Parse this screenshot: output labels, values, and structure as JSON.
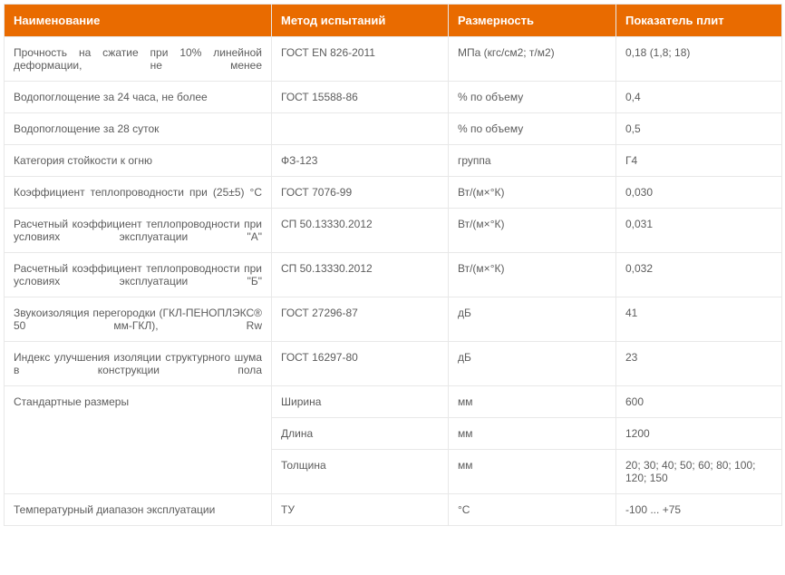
{
  "header_bg": "#e96b00",
  "header_color": "#ffffff",
  "cell_color": "#5c5c5c",
  "border_color": "#e8e8e8",
  "columns": [
    "Наименование",
    "Метод испытаний",
    "Размерность",
    "Показатель плит"
  ],
  "rows": [
    {
      "name": "Прочность на сжатие при 10% линейной деформации, не менее",
      "method": "ГОСТ EN 826-2011",
      "unit": "МПа (кгс/см2; т/м2)",
      "value": "0,18 (1,8; 18)",
      "justify": true
    },
    {
      "name": "Водопоглощение за 24 часа, не более",
      "method": "ГОСТ 15588-86",
      "unit": "% по объему",
      "value": "0,4"
    },
    {
      "name": "Водопоглощение за 28 суток",
      "method": "",
      "unit": "% по объему",
      "value": "0,5"
    },
    {
      "name": "Категория стойкости к огню",
      "method": "ФЗ-123",
      "unit": "группа",
      "value": "Г4"
    },
    {
      "name": "Коэффициент теплопроводности при (25±5) °С",
      "method": "ГОСТ 7076-99",
      "unit": "Вт/(м×°К)",
      "value": "0,030",
      "justify": true
    },
    {
      "name": "Расчетный коэффициент теплопроводности при условиях эксплуатации \"А\"",
      "method": "СП 50.13330.2012",
      "unit": "Вт/(м×°К)",
      "value": "0,031",
      "justify": true
    },
    {
      "name": "Расчетный коэффициент теплопроводности при условиях эксплуатации \"Б\"",
      "method": "СП 50.13330.2012",
      "unit": "Вт/(м×°К)",
      "value": "0,032",
      "justify": true
    },
    {
      "name": "Звукоизоляция перегородки (ГКЛ-ПЕНОПЛЭКС® 50 мм-ГКЛ), Rw",
      "method": "ГОСТ 27296-87",
      "unit": "дБ",
      "value": "41",
      "justify": true
    },
    {
      "name": "Индекс улучшения изоляции структурного шума в конструкции пола",
      "method": "ГОСТ 16297-80",
      "unit": "дБ",
      "value": "23",
      "justify": true
    }
  ],
  "size_label": "Стандартные размеры",
  "sizes": [
    {
      "dim": "Ширина",
      "unit": "мм",
      "value": "600"
    },
    {
      "dim": "Длина",
      "unit": "мм",
      "value": "1200"
    },
    {
      "dim": "Толщина",
      "unit": "мм",
      "value": "20; 30; 40; 50; 60; 80; 100; 120; 150"
    }
  ],
  "last_row": {
    "name": "Температурный диапазон эксплуатации",
    "method": "ТУ",
    "unit": "°С",
    "value": "-100 ... +75"
  }
}
